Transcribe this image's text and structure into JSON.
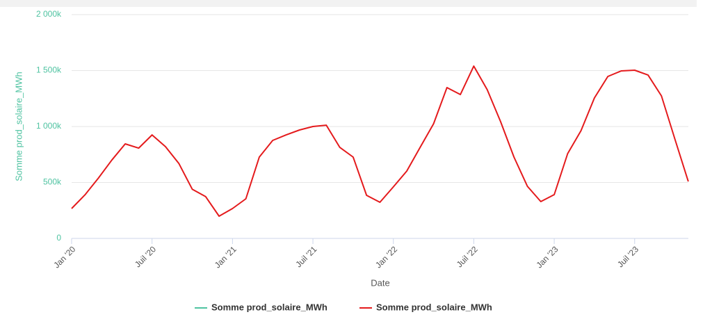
{
  "chart_data": {
    "type": "line",
    "xlabel": "Date",
    "ylabel": "Somme prod_solaire_MWh",
    "categories": [
      "Jan '20",
      null,
      null,
      null,
      null,
      null,
      "Juil '20",
      null,
      null,
      null,
      null,
      null,
      "Jan '21",
      null,
      null,
      null,
      null,
      null,
      "Juil '21",
      null,
      null,
      null,
      null,
      null,
      "Jan '22",
      null,
      null,
      null,
      null,
      null,
      "Juil '22",
      null,
      null,
      null,
      null,
      null,
      "Jan '23",
      null,
      null,
      null,
      null,
      null,
      "Juil '23",
      null,
      null,
      null,
      null
    ],
    "series": [
      {
        "name": "Somme prod_solaire_MWh",
        "color": "#4fc3a1",
        "values": [
          null,
          null,
          null,
          null,
          null,
          null,
          null,
          null,
          null,
          null,
          null,
          null,
          null,
          null,
          null,
          null,
          null,
          null,
          null,
          null,
          null,
          null,
          null,
          null,
          null,
          null,
          null,
          null,
          null,
          null,
          null,
          null,
          null,
          null,
          null,
          null,
          null,
          null,
          null,
          null,
          null,
          null,
          null,
          null,
          null,
          null,
          null
        ]
      },
      {
        "name": "Somme prod_solaire_MWh",
        "color": "#e41a1c",
        "values": [
          267000,
          390000,
          540000,
          700000,
          845000,
          807000,
          925000,
          820000,
          670000,
          440000,
          373000,
          199000,
          267000,
          354000,
          727000,
          876000,
          925000,
          969000,
          1000000,
          1012000,
          814000,
          727000,
          385000,
          323000,
          460000,
          602000,
          814000,
          1025000,
          1348000,
          1286000,
          1540000,
          1329000,
          1043000,
          727000,
          466000,
          329000,
          391000,
          758000,
          963000,
          1255000,
          1447000,
          1497000,
          1503000,
          1460000,
          1273000,
          888000,
          509000
        ]
      }
    ],
    "ylim": [
      0,
      2000000
    ],
    "yticks": [
      0,
      {
        "value": 500000,
        "label": "500k"
      },
      {
        "value": 1000000,
        "label": "1 000k"
      },
      {
        "value": 1500000,
        "label": "1 500k"
      },
      {
        "value": 2000000,
        "label": "2 000k"
      }
    ],
    "grid": true
  }
}
